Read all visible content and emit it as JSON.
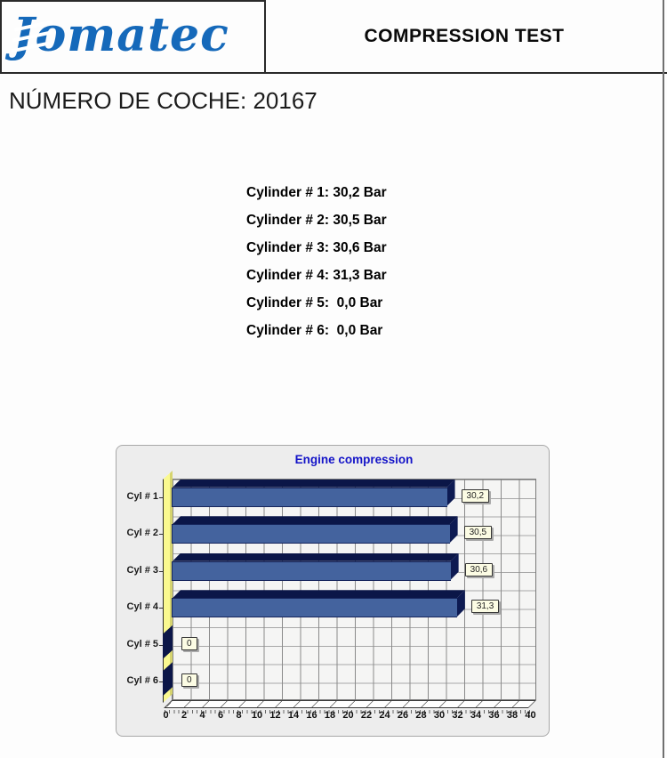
{
  "header": {
    "logo_text": "Jomatec",
    "logo_color": "#1569BA",
    "title": "COMPRESSION TEST"
  },
  "document": {
    "car_number_heading": "NÚMERO DE COCHE: 20167"
  },
  "cylinder_readings": [
    "Cylinder # 1: 30,2 Bar",
    "Cylinder # 2: 30,5 Bar",
    "Cylinder # 3: 30,6 Bar",
    "Cylinder # 4: 31,3 Bar",
    "Cylinder # 5:  0,0 Bar",
    "Cylinder # 6:  0,0 Bar"
  ],
  "chart_data": {
    "type": "bar",
    "orientation": "horizontal",
    "title": "Engine compression",
    "title_color": "#1414C8",
    "categories": [
      "Cyl # 1",
      "Cyl # 2",
      "Cyl # 3",
      "Cyl # 4",
      "Cyl # 5",
      "Cyl # 6"
    ],
    "values": [
      30.2,
      30.5,
      30.6,
      31.3,
      0,
      0
    ],
    "value_labels": [
      "30,2",
      "30,5",
      "30,6",
      "31,3",
      "0",
      "0"
    ],
    "unit": "Bar",
    "xlim": [
      0,
      40
    ],
    "x_ticks": [
      0,
      2,
      4,
      6,
      8,
      10,
      12,
      14,
      16,
      18,
      20,
      22,
      24,
      26,
      28,
      30,
      32,
      34,
      36,
      38,
      40
    ],
    "grid": true,
    "legend": "none",
    "colors": {
      "bar_face": "#44639E",
      "bar_shadow": "#0B1648",
      "axis_wall": "#FAF98F",
      "panel_bg": "#EDEDED",
      "value_box_bg": "#FCFCE4"
    }
  }
}
